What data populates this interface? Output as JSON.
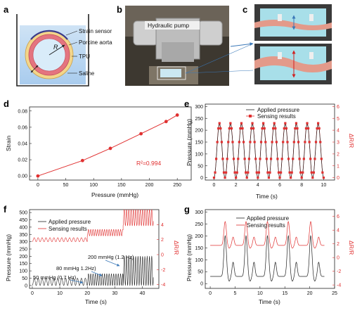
{
  "panels": {
    "a": {
      "label": "a",
      "callouts": [
        "Strain sensor",
        "Porcine aorta",
        "TPU",
        "Saline"
      ],
      "radius_symbol": "R"
    },
    "b": {
      "label": "b",
      "pump_label": "Hydraulic pump"
    },
    "c": {
      "label": "c"
    },
    "d": {
      "label": "d",
      "r2_text": "R²=0.994",
      "chart_data": {
        "type": "line",
        "x": [
          0,
          80,
          130,
          185,
          230,
          250
        ],
        "y": [
          0.0,
          0.019,
          0.034,
          0.052,
          0.067,
          0.075
        ],
        "xlabel": "Pressure (mmHg)",
        "ylabel": "Strain",
        "xticks": [
          "0",
          "50",
          "100",
          "150",
          "200",
          "250"
        ],
        "yticks": [
          "0.00",
          "0.02",
          "0.04",
          "0.06",
          "0.08"
        ],
        "xlim": [
          -15,
          275
        ],
        "ylim": [
          -0.005,
          0.085
        ],
        "color": "#e03030"
      }
    },
    "e": {
      "label": "e",
      "chart_data": {
        "type": "line",
        "xlabel": "Time (s)",
        "ylabel": "Pressure (mmHg)",
        "ylabel_right": "ΔR/R",
        "xticks": [
          "0",
          "2",
          "4",
          "6",
          "8",
          "10"
        ],
        "yticks": [
          "0",
          "50",
          "100",
          "150",
          "200",
          "250",
          "300"
        ],
        "yticks_right": [
          "0",
          "1",
          "2",
          "3",
          "4",
          "5",
          "6"
        ],
        "xlim": [
          -0.8,
          11
        ],
        "ylim": [
          -10,
          310
        ],
        "ylim_right": [
          -0.2,
          6.2
        ],
        "cycles": 10,
        "frequency_hz": 1,
        "pressure_range": [
          0,
          225
        ],
        "series": [
          {
            "name": "Applied pressure",
            "color": "#222222"
          },
          {
            "name": "Sensing results",
            "color": "#e03030"
          }
        ]
      }
    },
    "f": {
      "label": "f",
      "chart_data": {
        "type": "line",
        "xlabel": "Time (s)",
        "ylabel": "Pressure (mmHg)",
        "ylabel_right": "ΔR/R",
        "xticks": [
          "0",
          "10",
          "20",
          "30",
          "40"
        ],
        "yticks": [
          "0",
          "50",
          "100",
          "150",
          "200",
          "250",
          "300",
          "350",
          "400",
          "450",
          "500"
        ],
        "yticks_right": [
          "-4",
          "-2",
          "0",
          "2",
          "4"
        ],
        "xlim": [
          -1,
          46
        ],
        "ylim": [
          -20,
          520
        ],
        "ylim_right": [
          -4.5,
          6
        ],
        "segments": [
          {
            "t0": 0,
            "t1": 20,
            "freq_hz": 0.7,
            "pressure_max": 50
          },
          {
            "t0": 20,
            "t1": 33,
            "freq_hz": 1.2,
            "pressure_max": 80
          },
          {
            "t0": 33,
            "t1": 44,
            "freq_hz": 1.2,
            "pressure_max": 200
          }
        ],
        "annotations": [
          "50 mmHg (0.7 Hz)",
          "80 mmHg 1.2Hz)",
          "200 mmHg (1.2 Hz)"
        ],
        "series": [
          {
            "name": "Applied pressure",
            "color": "#222222"
          },
          {
            "name": "Sensing results",
            "color": "#e03030"
          }
        ]
      }
    },
    "g": {
      "label": "g",
      "chart_data": {
        "type": "line",
        "xlabel": "Time (s)",
        "ylabel": "Pressure (mmHg)",
        "ylabel_right": "ΔR/R",
        "xticks": [
          "0",
          "5",
          "10",
          "15",
          "20",
          "25"
        ],
        "yticks": [
          "0",
          "50",
          "100",
          "150",
          "200",
          "250",
          "300"
        ],
        "yticks_right": [
          "-4",
          "-2",
          "0",
          "2",
          "4",
          "6"
        ],
        "xlim": [
          -1,
          25
        ],
        "ylim": [
          -20,
          310
        ],
        "ylim_right": [
          -4.5,
          7
        ],
        "peak_times": [
          3,
          7.2,
          11.5,
          15.7,
          20.2
        ],
        "pressure_peak": 200,
        "series": [
          {
            "name": "Applied pressure",
            "color": "#222222"
          },
          {
            "name": "Sensing results",
            "color": "#e03030"
          }
        ]
      }
    }
  }
}
